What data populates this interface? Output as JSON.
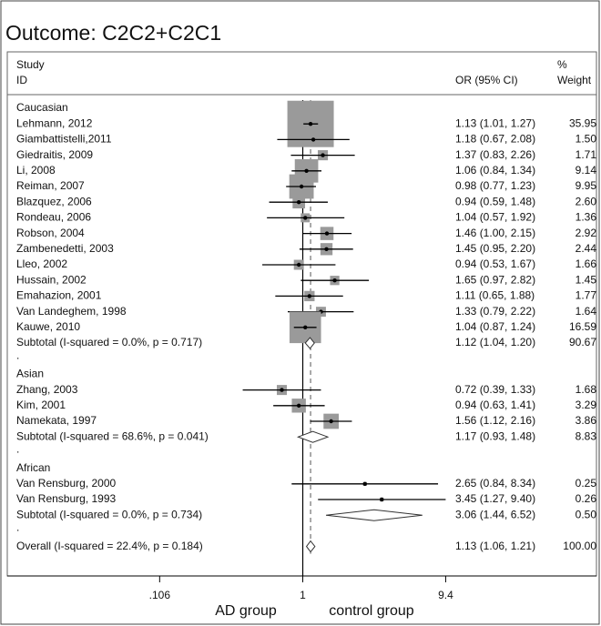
{
  "chart_data": {
    "type": "forest",
    "title": "Outcome: C2C2+C2C1",
    "headers": {
      "study": "Study",
      "id": "ID",
      "estimate": "OR (95% CI)",
      "percent": "%",
      "weight": "Weight"
    },
    "xscale": "log",
    "xlim": [
      0.01,
      100
    ],
    "xticks": [
      {
        "value": 0.106,
        "label": ".106"
      },
      1,
      9.4
    ],
    "null_value": 1,
    "xlabel_left": "AD group",
    "xlabel_right": "control group",
    "box_color": "#9a9a9a",
    "line_color": "#000000",
    "groups": [
      {
        "name": "Caucasian",
        "separator": ".",
        "studies": [
          {
            "label": "Lehmann,  2012",
            "or": 1.13,
            "lo": 1.01,
            "hi": 1.27,
            "weight": 35.95,
            "ci_label": "1.13 (1.01, 1.27)",
            "weight_label": "35.95"
          },
          {
            "label": "Giambattistelli,2011",
            "or": 1.18,
            "lo": 0.67,
            "hi": 2.08,
            "weight": 1.5,
            "ci_label": "1.18 (0.67, 2.08)",
            "weight_label": "1.50"
          },
          {
            "label": "Giedraitis, 2009",
            "or": 1.37,
            "lo": 0.83,
            "hi": 2.26,
            "weight": 1.71,
            "ci_label": "1.37 (0.83, 2.26)",
            "weight_label": "1.71"
          },
          {
            "label": "Li, 2008",
            "or": 1.06,
            "lo": 0.84,
            "hi": 1.34,
            "weight": 9.14,
            "ci_label": "1.06 (0.84, 1.34)",
            "weight_label": "9.14"
          },
          {
            "label": "Reiman, 2007",
            "or": 0.98,
            "lo": 0.77,
            "hi": 1.23,
            "weight": 9.95,
            "ci_label": "0.98 (0.77, 1.23)",
            "weight_label": "9.95"
          },
          {
            "label": "Blazquez, 2006",
            "or": 0.94,
            "lo": 0.59,
            "hi": 1.48,
            "weight": 2.6,
            "ci_label": "0.94 (0.59, 1.48)",
            "weight_label": "2.60"
          },
          {
            "label": "Rondeau, 2006",
            "or": 1.04,
            "lo": 0.57,
            "hi": 1.92,
            "weight": 1.36,
            "ci_label": "1.04 (0.57, 1.92)",
            "weight_label": "1.36"
          },
          {
            "label": "Robson, 2004",
            "or": 1.46,
            "lo": 1.0,
            "hi": 2.15,
            "weight": 2.92,
            "ci_label": "1.46 (1.00, 2.15)",
            "weight_label": "2.92"
          },
          {
            "label": "Zambenedetti, 2003",
            "or": 1.45,
            "lo": 0.95,
            "hi": 2.2,
            "weight": 2.44,
            "ci_label": "1.45 (0.95, 2.20)",
            "weight_label": "2.44"
          },
          {
            "label": "Lleo, 2002",
            "or": 0.94,
            "lo": 0.53,
            "hi": 1.67,
            "weight": 1.66,
            "ci_label": "0.94 (0.53, 1.67)",
            "weight_label": "1.66"
          },
          {
            "label": "Hussain, 2002",
            "or": 1.65,
            "lo": 0.97,
            "hi": 2.82,
            "weight": 1.45,
            "ci_label": "1.65 (0.97, 2.82)",
            "weight_label": "1.45"
          },
          {
            "label": "Emahazion, 2001",
            "or": 1.11,
            "lo": 0.65,
            "hi": 1.88,
            "weight": 1.77,
            "ci_label": "1.11 (0.65, 1.88)",
            "weight_label": "1.77"
          },
          {
            "label": "Van Landeghem, 1998",
            "or": 1.33,
            "lo": 0.79,
            "hi": 2.22,
            "weight": 1.64,
            "ci_label": "1.33 (0.79, 2.22)",
            "weight_label": "1.64"
          },
          {
            "label": "Kauwe,  2010",
            "or": 1.04,
            "lo": 0.87,
            "hi": 1.24,
            "weight": 16.59,
            "ci_label": "1.04 (0.87, 1.24)",
            "weight_label": "16.59"
          }
        ],
        "subtotal": {
          "label": "Subtotal  (I-squared = 0.0%, p = 0.717)",
          "or": 1.12,
          "lo": 1.04,
          "hi": 1.2,
          "weight": 90.67,
          "ci_label": "1.12 (1.04, 1.20)",
          "weight_label": "90.67"
        }
      },
      {
        "name": "Asian",
        "separator": ".",
        "studies": [
          {
            "label": "Zhang, 2003",
            "or": 0.72,
            "lo": 0.39,
            "hi": 1.33,
            "weight": 1.68,
            "ci_label": "0.72 (0.39, 1.33)",
            "weight_label": "1.68"
          },
          {
            "label": "Kim, 2001",
            "or": 0.94,
            "lo": 0.63,
            "hi": 1.41,
            "weight": 3.29,
            "ci_label": "0.94 (0.63, 1.41)",
            "weight_label": "3.29"
          },
          {
            "label": "Namekata, 1997",
            "or": 1.56,
            "lo": 1.12,
            "hi": 2.16,
            "weight": 3.86,
            "ci_label": "1.56 (1.12, 2.16)",
            "weight_label": "3.86"
          }
        ],
        "subtotal": {
          "label": "Subtotal  (I-squared = 68.6%, p = 0.041)",
          "or": 1.17,
          "lo": 0.93,
          "hi": 1.48,
          "weight": 8.83,
          "ci_label": "1.17 (0.93, 1.48)",
          "weight_label": "8.83"
        }
      },
      {
        "name": "African",
        "separator": ".",
        "studies": [
          {
            "label": "Van Rensburg, 2000",
            "or": 2.65,
            "lo": 0.84,
            "hi": 8.34,
            "weight": 0.25,
            "ci_label": "2.65 (0.84, 8.34)",
            "weight_label": "0.25"
          },
          {
            "label": "Van Rensburg, 1993",
            "or": 3.45,
            "lo": 1.27,
            "hi": 9.4,
            "weight": 0.26,
            "ci_label": "3.45 (1.27, 9.40)",
            "weight_label": "0.26"
          }
        ],
        "subtotal": {
          "label": "Subtotal  (I-squared = 0.0%, p = 0.734)",
          "or": 3.06,
          "lo": 1.44,
          "hi": 6.52,
          "weight": 0.5,
          "ci_label": "3.06 (1.44, 6.52)",
          "weight_label": "0.50"
        }
      }
    ],
    "overall": {
      "label": "Overall  (I-squared = 22.4%, p = 0.184)",
      "or": 1.13,
      "lo": 1.06,
      "hi": 1.21,
      "weight": 100,
      "ci_label": "1.13 (1.06, 1.21)",
      "weight_label": "100.00"
    }
  }
}
